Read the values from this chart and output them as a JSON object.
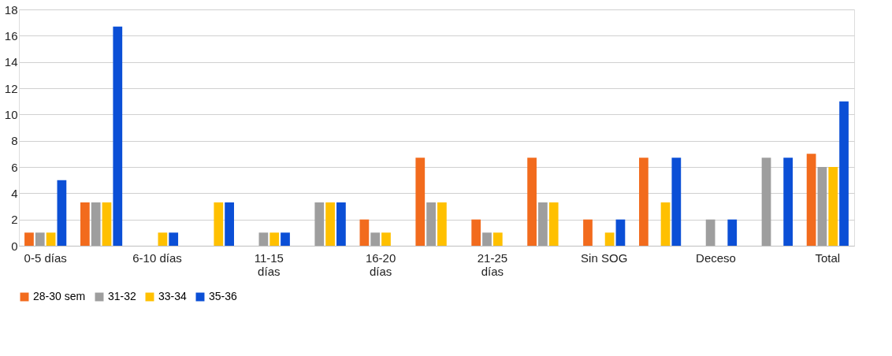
{
  "chart_data": {
    "type": "bar",
    "categories": [
      "0-5 días",
      null,
      "6-10 días",
      null,
      "11-15 días",
      null,
      "16-20 días",
      null,
      "21-25 días",
      null,
      "Sin  SOG",
      null,
      "Deceso",
      null,
      "Total"
    ],
    "series": [
      {
        "name": "28-30 sem",
        "color": "#f26b1d",
        "values": [
          1,
          3.3,
          null,
          null,
          null,
          null,
          2,
          6.7,
          2,
          6.7,
          2,
          6.7,
          null,
          null,
          7
        ]
      },
      {
        "name": "31-32",
        "color": "#9e9e9e",
        "values": [
          1,
          3.3,
          null,
          null,
          1,
          3.3,
          1,
          3.3,
          1,
          3.3,
          null,
          null,
          2,
          6.7,
          6
        ]
      },
      {
        "name": "33-34",
        "color": "#ffc000",
        "values": [
          1,
          3.3,
          1,
          3.3,
          1,
          3.3,
          1,
          3.3,
          1,
          3.3,
          1,
          3.3,
          null,
          null,
          6
        ]
      },
      {
        "name": "35-36",
        "color": "#0b4fd6",
        "values": [
          5,
          16.7,
          1,
          3.3,
          1,
          3.3,
          null,
          null,
          null,
          null,
          2,
          6.7,
          2,
          6.7,
          11
        ]
      }
    ],
    "ylim": [
      0,
      18
    ],
    "yticks": [
      0,
      2,
      4,
      6,
      8,
      10,
      12,
      14,
      16,
      18
    ],
    "grid": "y",
    "legend": "bottom"
  }
}
